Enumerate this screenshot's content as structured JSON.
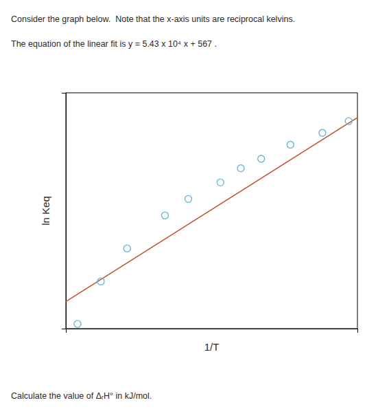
{
  "chart_data": {
    "type": "scatter",
    "title": "Consider the graph below.  Note that the x-axis units are reciprocal kelvins.",
    "subtitle": "The equation of the linear fit is y = 5.43 x 10⁴ x + 567 .",
    "annotations": [
      "Calculate the value of ΔᵣH° in kJ/mol."
    ],
    "xlabel": "1/T",
    "ylabel": "ln Keq",
    "xlim": [
      0.0,
      1.0
    ],
    "ylim": [
      0.0,
      1.0
    ],
    "tick_labels": false,
    "series": [
      {
        "type": "scatter",
        "marker": "circle",
        "color": "#6ab4d8",
        "x": [
          0.04,
          0.12,
          0.21,
          0.34,
          0.42,
          0.53,
          0.6,
          0.67,
          0.77,
          0.88,
          0.97
        ],
        "values": [
          0.02,
          0.2,
          0.34,
          0.48,
          0.55,
          0.62,
          0.68,
          0.72,
          0.78,
          0.83,
          0.88
        ]
      },
      {
        "type": "line",
        "line_style": "solid",
        "color": "#c0502a",
        "x": [
          0.0,
          1.0
        ],
        "values": [
          0.115,
          0.895
        ]
      }
    ]
  }
}
